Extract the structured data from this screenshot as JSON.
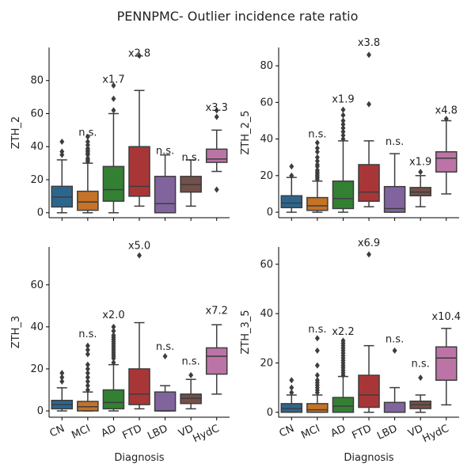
{
  "figure": {
    "title": "PENNPMC- Outlier incidence rate ratio"
  },
  "chart_data": [
    {
      "type": "box",
      "ylabel": "ZTH_2",
      "xlabel": "",
      "ylim": [
        -3,
        100
      ],
      "yticks": [
        0,
        20,
        40,
        60,
        80
      ],
      "categories": [
        "CN",
        "MCI",
        "AD",
        "FTD",
        "LBD",
        "VD",
        "HydC"
      ],
      "colors": [
        "#3274a1",
        "#e1812c",
        "#3a923a",
        "#c03d3e",
        "#9372b2",
        "#845b53",
        "#d684bd"
      ],
      "boxes": [
        {
          "q1": 3.5,
          "median": 9.5,
          "q3": 16,
          "whislo": 0,
          "whishi": 32,
          "outliers": [
            35,
            37,
            43
          ]
        },
        {
          "q1": 1.5,
          "median": 6.5,
          "q3": 13,
          "whislo": 0,
          "whishi": 30,
          "outliers": [
            31,
            32,
            33,
            35,
            36,
            37,
            38,
            39,
            41,
            43,
            46
          ]
        },
        {
          "q1": 7,
          "median": 14,
          "q3": 28,
          "whislo": 0,
          "whishi": 60,
          "outliers": [
            62,
            69,
            77
          ]
        },
        {
          "q1": 10,
          "median": 16,
          "q3": 40,
          "whislo": 4,
          "whishi": 74,
          "outliers": [
            95
          ]
        },
        {
          "q1": 0,
          "median": 5.5,
          "q3": 22,
          "whislo": 0,
          "whishi": 35,
          "outliers": []
        },
        {
          "q1": 12.5,
          "median": 17,
          "q3": 22,
          "whislo": 4,
          "whishi": 32,
          "outliers": []
        },
        {
          "q1": 30.5,
          "median": 32.5,
          "q3": 38.5,
          "whislo": 25,
          "whishi": 50,
          "outliers": [
            14,
            58,
            62
          ]
        }
      ],
      "annotations": [
        "",
        "n.s.",
        "x1.7",
        "x2.8",
        "n.s.",
        "n.s.",
        "x3.3"
      ],
      "annotation_values": [
        null,
        49,
        81,
        97,
        38,
        34,
        64
      ]
    },
    {
      "type": "box",
      "ylabel": "ZTH_2_5",
      "xlabel": "",
      "ylim": [
        -3,
        90
      ],
      "yticks": [
        0,
        20,
        40,
        60,
        80
      ],
      "categories": [
        "CN",
        "MCI",
        "AD",
        "FTD",
        "LBD",
        "VD",
        "HydC"
      ],
      "colors": [
        "#3274a1",
        "#e1812c",
        "#3a923a",
        "#c03d3e",
        "#9372b2",
        "#845b53",
        "#d684bd"
      ],
      "boxes": [
        {
          "q1": 2.5,
          "median": 5,
          "q3": 9,
          "whislo": 0,
          "whishi": 19,
          "outliers": [
            20,
            25
          ]
        },
        {
          "q1": 1,
          "median": 3.5,
          "q3": 8,
          "whislo": 0,
          "whishi": 17,
          "outliers": [
            18,
            19,
            20,
            21,
            22,
            23,
            25,
            26,
            28,
            30,
            33,
            35,
            38
          ]
        },
        {
          "q1": 2,
          "median": 7.5,
          "q3": 17,
          "whislo": 0,
          "whishi": 39,
          "outliers": [
            40,
            42,
            44,
            46,
            48,
            50,
            53,
            56
          ]
        },
        {
          "q1": 6,
          "median": 11,
          "q3": 26,
          "whislo": 3,
          "whishi": 39,
          "outliers": [
            59,
            86
          ]
        },
        {
          "q1": 0,
          "median": 2,
          "q3": 14,
          "whislo": 0,
          "whishi": 32,
          "outliers": []
        },
        {
          "q1": 9,
          "median": 11,
          "q3": 13.5,
          "whislo": 3,
          "whishi": 20,
          "outliers": [
            22
          ]
        },
        {
          "q1": 22,
          "median": 29.5,
          "q3": 33,
          "whislo": 10,
          "whishi": 50,
          "outliers": [
            51
          ]
        }
      ],
      "annotations": [
        "",
        "n.s.",
        "x1.9",
        "x3.8",
        "n.s.",
        "x1.9",
        "x4.8"
      ],
      "annotation_values": [
        null,
        43,
        62,
        93,
        39,
        28,
        56
      ]
    },
    {
      "type": "box",
      "ylabel": "ZTH_3",
      "xlabel": "Diagnosis",
      "ylim": [
        -3,
        78
      ],
      "yticks": [
        0,
        20,
        40,
        60
      ],
      "categories": [
        "CN",
        "MCI",
        "AD",
        "FTD",
        "LBD",
        "VD",
        "HydC"
      ],
      "colors": [
        "#3274a1",
        "#e1812c",
        "#3a923a",
        "#c03d3e",
        "#9372b2",
        "#845b53",
        "#d684bd"
      ],
      "boxes": [
        {
          "q1": 1,
          "median": 3,
          "q3": 5,
          "whislo": 0,
          "whishi": 11,
          "outliers": [
            14,
            16,
            18
          ]
        },
        {
          "q1": 0,
          "median": 2,
          "q3": 4.5,
          "whislo": 0,
          "whishi": 9,
          "outliers": [
            10,
            12,
            14,
            16,
            18,
            20,
            22,
            27,
            29,
            31
          ]
        },
        {
          "q1": 1,
          "median": 4,
          "q3": 10,
          "whislo": 0,
          "whishi": 22,
          "outliers": [
            23,
            25,
            26,
            27,
            28,
            29,
            30,
            31,
            32,
            33,
            34,
            35,
            36,
            38,
            40
          ]
        },
        {
          "q1": 3,
          "median": 8,
          "q3": 20,
          "whislo": 1,
          "whishi": 42,
          "outliers": [
            74
          ]
        },
        {
          "q1": 0,
          "median": 0,
          "q3": 9,
          "whislo": 0,
          "whishi": 12,
          "outliers": [
            26
          ]
        },
        {
          "q1": 3.5,
          "median": 6,
          "q3": 8,
          "whislo": 1,
          "whishi": 15,
          "outliers": [
            17
          ]
        },
        {
          "q1": 17.5,
          "median": 26,
          "q3": 30,
          "whislo": 8,
          "whishi": 41,
          "outliers": []
        }
      ],
      "annotations": [
        "",
        "n.s.",
        "x2.0",
        "x5.0",
        "n.s.",
        "n.s.",
        "x7.2"
      ],
      "annotation_values": [
        null,
        37,
        46,
        79,
        31,
        24,
        48
      ]
    },
    {
      "type": "box",
      "ylabel": "ZTH_3_5",
      "xlabel": "Diagnosis",
      "ylim": [
        -2,
        67
      ],
      "yticks": [
        0,
        20,
        40,
        60
      ],
      "categories": [
        "CN",
        "MCI",
        "AD",
        "FTD",
        "LBD",
        "VD",
        "HydC"
      ],
      "colors": [
        "#3274a1",
        "#e1812c",
        "#3a923a",
        "#c03d3e",
        "#9372b2",
        "#845b53",
        "#d684bd"
      ],
      "boxes": [
        {
          "q1": 0,
          "median": 1.5,
          "q3": 3.5,
          "whislo": 0,
          "whishi": 7,
          "outliers": [
            8,
            10,
            13
          ]
        },
        {
          "q1": 0,
          "median": 1,
          "q3": 3.5,
          "whislo": 0,
          "whishi": 7,
          "outliers": [
            8,
            9,
            10,
            11,
            12,
            13,
            15,
            19,
            25,
            30
          ]
        },
        {
          "q1": 0,
          "median": 2.5,
          "q3": 6,
          "whislo": 0,
          "whishi": 14.5,
          "outliers": [
            15,
            16,
            17,
            18,
            19,
            20,
            21,
            22,
            23,
            24,
            25,
            26,
            27,
            28,
            29
          ]
        },
        {
          "q1": 2,
          "median": 7,
          "q3": 15,
          "whislo": 0,
          "whishi": 27,
          "outliers": [
            64
          ]
        },
        {
          "q1": 0,
          "median": 0,
          "q3": 4,
          "whislo": 0,
          "whishi": 10,
          "outliers": [
            25
          ]
        },
        {
          "q1": 1.5,
          "median": 3,
          "q3": 4.5,
          "whislo": 0,
          "whishi": 7,
          "outliers": [
            14
          ]
        },
        {
          "q1": 13,
          "median": 22,
          "q3": 26.5,
          "whislo": 3,
          "whishi": 34,
          "outliers": []
        }
      ],
      "annotations": [
        "",
        "n.s.",
        "x2.2",
        "x6.9",
        "n.s.",
        "n.s.",
        "x10.4"
      ],
      "annotation_values": [
        null,
        34,
        33,
        69,
        30,
        20,
        39
      ]
    }
  ]
}
